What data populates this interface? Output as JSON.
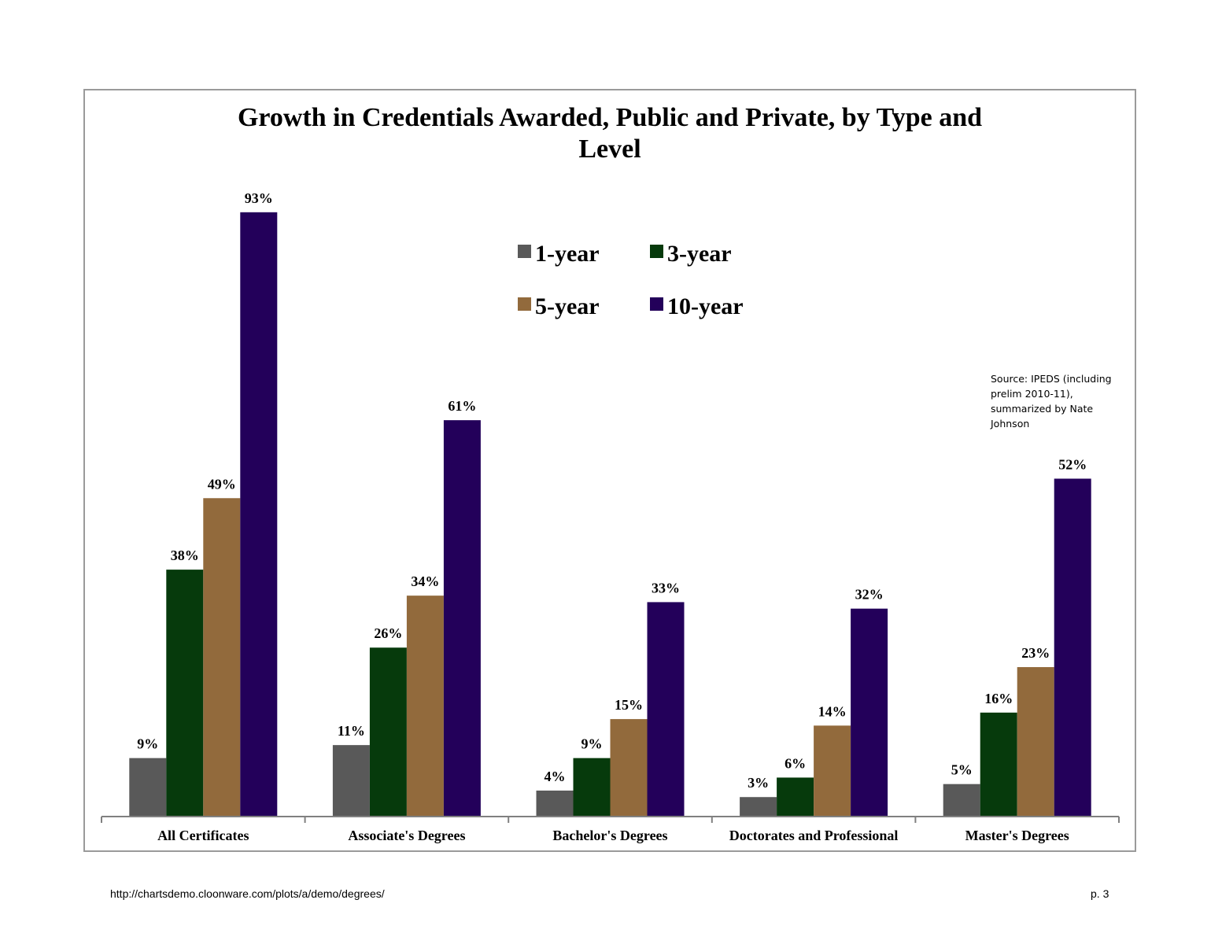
{
  "footer": {
    "url": "http://chartsdemo.cloonware.com/plots/a/demo/degrees/",
    "page": "p. 3"
  },
  "source_note": "Source: IPEDS (including prelim 2010-11), summarized by Nate Johnson",
  "chart_data": {
    "type": "bar",
    "title": "Growth in Credentials Awarded, Public and Private, by Type and Level",
    "xlabel": "",
    "ylabel": "",
    "ylim": [
      0,
      100
    ],
    "grid": false,
    "legend_position": "top-center",
    "categories": [
      "All Certificates",
      "Associate's Degrees",
      "Bachelor's Degrees",
      "Doctorates and Professional",
      "Master's Degrees"
    ],
    "series": [
      {
        "name": "1-year",
        "color": "#595959",
        "values": [
          9,
          11,
          4,
          3,
          5
        ]
      },
      {
        "name": "3-year",
        "color": "#063a0c",
        "values": [
          38,
          26,
          9,
          6,
          16
        ]
      },
      {
        "name": "5-year",
        "color": "#926a3c",
        "values": [
          49,
          34,
          15,
          14,
          23
        ]
      },
      {
        "name": "10-year",
        "color": "#23005a",
        "values": [
          93,
          61,
          33,
          32,
          52
        ]
      }
    ],
    "value_suffix": "%"
  }
}
